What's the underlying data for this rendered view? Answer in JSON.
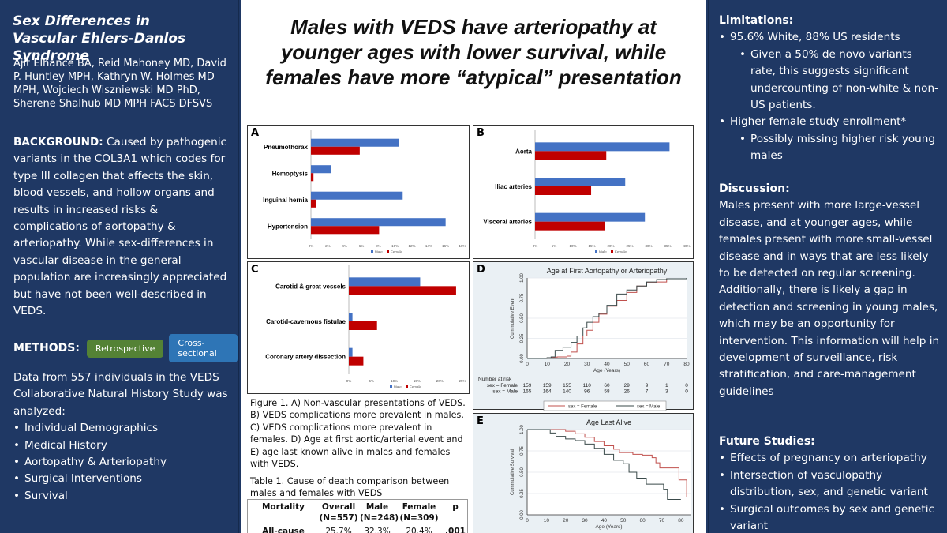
{
  "left": {
    "title_line1": "Sex Differences in",
    "title_line2": "Vascular Ehlers-Danlos Syndrome",
    "authors": "Ajit Elhance BA, Reid Mahoney MD, David P. Huntley MPH, Kathryn W. Holmes MD MPH, Wojciech Wiszniewski MD PhD, Sherene Shalhub MD MPH FACS DFSVS",
    "background_label": "BACKGROUND:",
    "background_text": " Caused by pathogenic variants in the COL3A1 which codes for type III collagen that affects the skin, blood vessels, and hollow organs and results in increased risks & complications of aortopathy & arteriopathy. While sex-differences in vascular disease in the general population are increasingly appreciated but have not been well-described in VEDS.",
    "methods_label": "METHODS:",
    "methods_tags": [
      "Retrospective",
      "Cross-sectional"
    ],
    "data_intro": "Data from 557 individuals in the VEDS Collaborative Natural History Study was analyzed:",
    "data_items": [
      "Individual Demographics",
      "Medical History",
      "Aortopathy & Arteriopathy",
      "Surgical Interventions",
      "Survival"
    ]
  },
  "main": {
    "title": "Males with VEDS have arteriopathy at younger ages with lower survival, while females have more “atypical” presentation",
    "figure_caption": "Figure 1. A) Non-vascular presentations of VEDS. B) VEDS complications more prevalent in males. C) VEDS complications more prevalent in females. D) Age at first aortic/arterial event and E) age last known alive in males and females with VEDS.",
    "table_caption": "Table 1. Cause of death comparison between males and females with VEDS",
    "table": {
      "headers": [
        "Mortality",
        "Overall",
        "Male",
        "Female",
        "p"
      ],
      "subheaders": [
        "",
        "(N=557)",
        "(N=248)",
        "(N=309)",
        ""
      ],
      "rows": [
        [
          "All-cause",
          "25.7%",
          "32.3%",
          "20.4%",
          ".001"
        ]
      ]
    }
  },
  "colors": {
    "male": "#4472c4",
    "female": "#c00000",
    "km_male": "#3a4a4a",
    "km_female": "#c0504d"
  },
  "chart_data": [
    {
      "id": "A",
      "type": "bar",
      "orientation": "horizontal",
      "title": "",
      "categories": [
        "Pneumothorax",
        "Hemoptysis",
        "Inguinal hernia",
        "Hypertension"
      ],
      "series": [
        {
          "name": "Male",
          "values": [
            10.5,
            2.4,
            10.9,
            16.0
          ]
        },
        {
          "name": "Female",
          "values": [
            5.8,
            0.3,
            0.6,
            8.1
          ]
        }
      ],
      "xlim": [
        0,
        18
      ],
      "xticks": [
        0,
        2,
        4,
        6,
        8,
        10,
        12,
        14,
        16,
        18
      ],
      "tick_suffix": "%",
      "legend": "bottom"
    },
    {
      "id": "B",
      "type": "bar",
      "orientation": "horizontal",
      "title": "",
      "categories": [
        "Aorta",
        "Iliac arteries",
        "Visceral arteries"
      ],
      "series": [
        {
          "name": "Male",
          "values": [
            35.5,
            23.8,
            29.0
          ]
        },
        {
          "name": "Female",
          "values": [
            18.8,
            14.8,
            18.4
          ]
        }
      ],
      "xlim": [
        0,
        40
      ],
      "xticks": [
        0,
        5,
        10,
        15,
        20,
        25,
        30,
        35,
        40
      ],
      "tick_suffix": "%",
      "legend": "bottom"
    },
    {
      "id": "C",
      "type": "bar",
      "orientation": "horizontal",
      "title": "",
      "categories": [
        "Carotid & great vessels",
        "Carotid-cavernous fistulae",
        "Coronary artery dissection"
      ],
      "series": [
        {
          "name": "Male",
          "values": [
            15.7,
            0.8,
            0.8
          ]
        },
        {
          "name": "Female",
          "values": [
            23.6,
            6.2,
            3.2
          ]
        }
      ],
      "xlim": [
        0,
        25
      ],
      "xticks": [
        0,
        5,
        10,
        15,
        20,
        25
      ],
      "tick_suffix": "%",
      "legend": "bottom"
    },
    {
      "id": "D",
      "type": "line",
      "step": true,
      "title": "Age at First Aortopathy or Arteriopathy",
      "xlabel": "Age (Years)",
      "ylabel": "Cummulative Event",
      "xlim": [
        0,
        80
      ],
      "ylim": [
        0,
        1
      ],
      "xticks": [
        0,
        10,
        20,
        30,
        40,
        50,
        60,
        70,
        80
      ],
      "yticks": [
        "0.00",
        "0.25",
        "0.50",
        "0.75",
        "1.00"
      ],
      "series": [
        {
          "name": "sex = Female",
          "x": [
            0,
            10,
            15,
            20,
            22,
            25,
            28,
            30,
            33,
            36,
            40,
            45,
            50,
            55,
            60,
            65,
            70,
            80
          ],
          "y": [
            0,
            0.01,
            0.02,
            0.03,
            0.08,
            0.18,
            0.28,
            0.35,
            0.45,
            0.55,
            0.65,
            0.72,
            0.82,
            0.9,
            0.94,
            0.95,
            0.99,
            1.0
          ]
        },
        {
          "name": "sex = Male",
          "x": [
            0,
            10,
            12,
            14,
            18,
            22,
            25,
            28,
            30,
            33,
            36,
            40,
            45,
            50,
            55,
            60,
            65,
            70,
            80
          ],
          "y": [
            0,
            0.01,
            0.02,
            0.1,
            0.14,
            0.2,
            0.28,
            0.38,
            0.45,
            0.52,
            0.56,
            0.66,
            0.8,
            0.85,
            0.9,
            0.95,
            0.98,
            0.99,
            1.0
          ]
        }
      ],
      "risk_table": {
        "label": "Number at risk",
        "rows": [
          {
            "name": "sex = Female",
            "values": [
              159,
              159,
              155,
              110,
              60,
              29,
              9,
              1,
              0
            ]
          },
          {
            "name": "sex = Male",
            "values": [
              165,
              164,
              140,
              96,
              58,
              26,
              7,
              3,
              0
            ]
          }
        ]
      },
      "legend": "bottom"
    },
    {
      "id": "E",
      "type": "line",
      "step": true,
      "title": "Age Last Alive",
      "xlabel": "Age (Years)",
      "ylabel": "Cummulative Survival",
      "xlim": [
        0,
        85
      ],
      "ylim": [
        0,
        1
      ],
      "xticks": [
        0,
        10,
        20,
        30,
        40,
        50,
        60,
        70,
        80
      ],
      "yticks": [
        "0.00",
        "0.25",
        "0.50",
        "0.75",
        "1.00"
      ],
      "series": [
        {
          "name": "Female",
          "x": [
            0,
            10,
            15,
            20,
            25,
            30,
            35,
            40,
            45,
            48,
            55,
            60,
            65,
            67,
            69,
            79,
            83
          ],
          "y": [
            1,
            1,
            1,
            0.98,
            0.95,
            0.91,
            0.86,
            0.81,
            0.77,
            0.73,
            0.71,
            0.7,
            0.67,
            0.61,
            0.55,
            0.41,
            0.21
          ]
        },
        {
          "name": "Male",
          "x": [
            0,
            10,
            12,
            15,
            20,
            25,
            30,
            35,
            40,
            45,
            50,
            53,
            57,
            62,
            68,
            71,
            73,
            80
          ],
          "y": [
            1,
            1,
            0.96,
            0.92,
            0.89,
            0.87,
            0.83,
            0.78,
            0.71,
            0.64,
            0.6,
            0.5,
            0.43,
            0.36,
            0.36,
            0.3,
            0.18,
            0.18
          ]
        }
      ]
    }
  ],
  "right": {
    "limitations_title": "Limitations:",
    "limitations": [
      {
        "text": "95.6% White, 88% US residents",
        "sub": [
          "Given a 50% de novo variants rate, this suggests significant undercounting of non-white & non-US patients."
        ]
      },
      {
        "text": "Higher female study enrollment*",
        "sub": [
          "Possibly missing higher risk young males"
        ]
      }
    ],
    "discussion_title": "Discussion:",
    "discussion_text": "Males present with more large-vessel disease, and at younger ages, while females present with more small-vessel disease and in ways that are less likely to be detected on regular screening. Additionally, there is likely a gap in detection and screening in young males, which may be an opportunity for intervention. This information will help in development of surveillance, risk stratification, and care-management guidelines",
    "future_title": "Future Studies:",
    "future": [
      "Effects of pregnancy on arteriopathy",
      "Intersection of vasculopathy distribution, sex, and genetic variant",
      "Surgical outcomes by sex and genetic variant"
    ]
  }
}
